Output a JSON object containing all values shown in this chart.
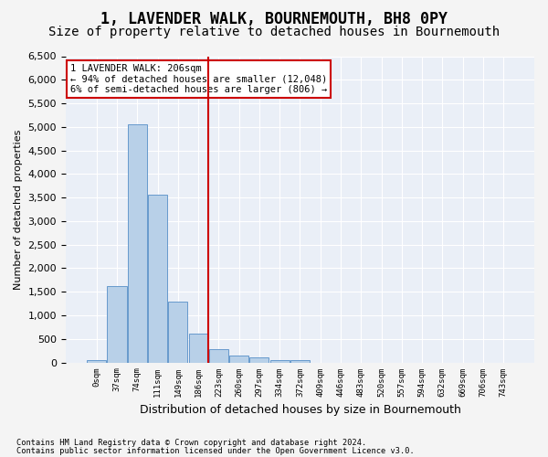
{
  "title": "1, LAVENDER WALK, BOURNEMOUTH, BH8 0PY",
  "subtitle": "Size of property relative to detached houses in Bournemouth",
  "xlabel": "Distribution of detached houses by size in Bournemouth",
  "ylabel": "Number of detached properties",
  "footnote1": "Contains HM Land Registry data © Crown copyright and database right 2024.",
  "footnote2": "Contains public sector information licensed under the Open Government Licence v3.0.",
  "bar_color": "#b8d0e8",
  "bar_edge_color": "#6699cc",
  "annotation_box_color": "#cc0000",
  "vline_color": "#cc0000",
  "vline_x": 5.5,
  "annotation_line1": "1 LAVENDER WALK: 206sqm",
  "annotation_line2": "← 94% of detached houses are smaller (12,048)",
  "annotation_line3": "6% of semi-detached houses are larger (806) →",
  "bins": [
    "0sqm",
    "37sqm",
    "74sqm",
    "111sqm",
    "149sqm",
    "186sqm",
    "223sqm",
    "260sqm",
    "297sqm",
    "334sqm",
    "372sqm",
    "409sqm",
    "446sqm",
    "483sqm",
    "520sqm",
    "557sqm",
    "594sqm",
    "632sqm",
    "669sqm",
    "706sqm",
    "743sqm"
  ],
  "values": [
    50,
    1620,
    5050,
    3570,
    1300,
    620,
    280,
    150,
    100,
    50,
    50,
    0,
    0,
    0,
    0,
    0,
    0,
    0,
    0,
    0,
    0
  ],
  "ylim": [
    0,
    6500
  ],
  "yticks": [
    0,
    500,
    1000,
    1500,
    2000,
    2500,
    3000,
    3500,
    4000,
    4500,
    5000,
    5500,
    6000,
    6500
  ],
  "axes_background": "#eaeff7",
  "grid_color": "#ffffff",
  "fig_background": "#f4f4f4",
  "title_fontsize": 12,
  "subtitle_fontsize": 10
}
